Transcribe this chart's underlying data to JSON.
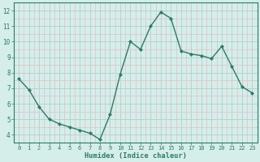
{
  "x": [
    0,
    1,
    2,
    3,
    4,
    5,
    6,
    7,
    8,
    9,
    10,
    11,
    12,
    13,
    14,
    15,
    16,
    17,
    18,
    19,
    20,
    21,
    22,
    23
  ],
  "y": [
    7.6,
    6.9,
    5.8,
    5.0,
    4.7,
    4.5,
    4.3,
    4.1,
    3.7,
    5.3,
    7.9,
    10.0,
    9.5,
    11.0,
    11.9,
    11.5,
    9.4,
    9.2,
    9.1,
    8.9,
    9.7,
    8.4,
    7.1,
    6.7
  ],
  "line_color": "#2d7a66",
  "marker": "D",
  "marker_size": 2.2,
  "bg_color": "#d5eeea",
  "grid_major_color": "#b8ccc9",
  "grid_minor_color": "#ddc8c8",
  "xlabel": "Humidex (Indice chaleur)",
  "xlim": [
    -0.5,
    23.5
  ],
  "ylim": [
    3.5,
    12.5
  ],
  "yticks": [
    4,
    5,
    6,
    7,
    8,
    9,
    10,
    11,
    12
  ],
  "xticks": [
    0,
    1,
    2,
    3,
    4,
    5,
    6,
    7,
    8,
    9,
    10,
    11,
    12,
    13,
    14,
    15,
    16,
    17,
    18,
    19,
    20,
    21,
    22,
    23
  ],
  "spine_color": "#2d7a66",
  "tick_color": "#2d7a66",
  "label_color": "#2d7a66"
}
